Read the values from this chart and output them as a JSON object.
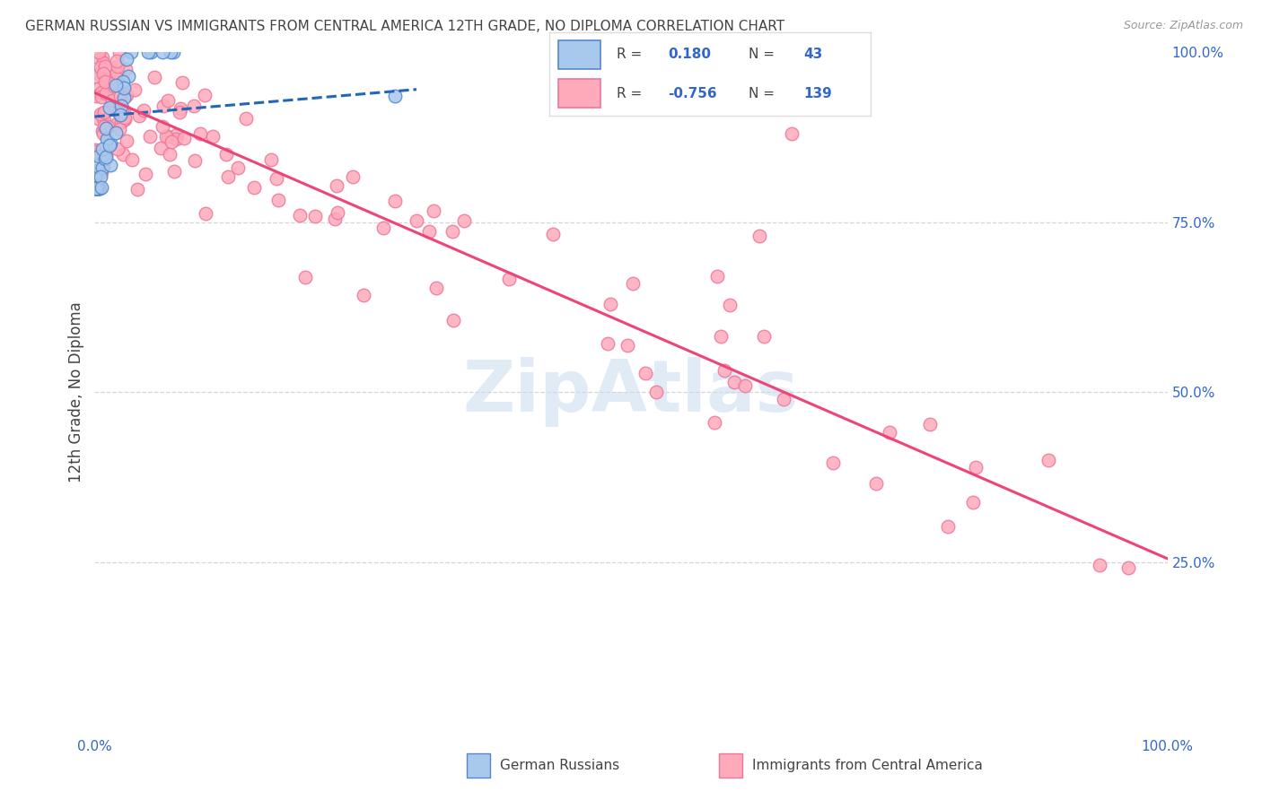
{
  "title": "GERMAN RUSSIAN VS IMMIGRANTS FROM CENTRAL AMERICA 12TH GRADE, NO DIPLOMA CORRELATION CHART",
  "source": "Source: ZipAtlas.com",
  "ylabel": "12th Grade, No Diploma",
  "watermark": "ZipAtlas",
  "blue_R": 0.18,
  "blue_N": 43,
  "pink_R": -0.756,
  "pink_N": 139,
  "blue_scatter_color_face": "#a8c8ec",
  "blue_scatter_color_edge": "#5588cc",
  "pink_scatter_color_face": "#ffaabb",
  "pink_scatter_color_edge": "#ee7799",
  "blue_line_color": "#2266bb",
  "pink_line_color": "#ee4477",
  "grid_color": "#cccccc",
  "background_color": "#ffffff",
  "label_color": "#3366cc",
  "text_color": "#444444",
  "source_color": "#999999"
}
